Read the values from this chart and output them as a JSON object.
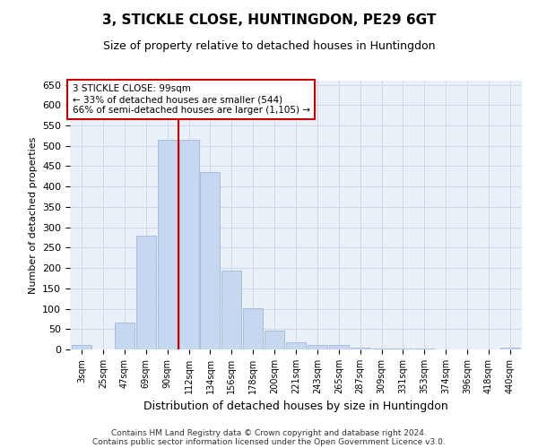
{
  "title": "3, STICKLE CLOSE, HUNTINGDON, PE29 6GT",
  "subtitle": "Size of property relative to detached houses in Huntingdon",
  "xlabel": "Distribution of detached houses by size in Huntingdon",
  "ylabel": "Number of detached properties",
  "footer1": "Contains HM Land Registry data © Crown copyright and database right 2024.",
  "footer2": "Contains public sector information licensed under the Open Government Licence v3.0.",
  "categories": [
    "3sqm",
    "25sqm",
    "47sqm",
    "69sqm",
    "90sqm",
    "112sqm",
    "134sqm",
    "156sqm",
    "178sqm",
    "200sqm",
    "221sqm",
    "243sqm",
    "265sqm",
    "287sqm",
    "309sqm",
    "331sqm",
    "353sqm",
    "374sqm",
    "396sqm",
    "418sqm",
    "440sqm"
  ],
  "values": [
    10,
    0,
    65,
    280,
    515,
    515,
    435,
    193,
    102,
    46,
    18,
    12,
    10,
    5,
    3,
    2,
    2,
    0,
    0,
    0,
    5
  ],
  "bar_color": "#c5d8f0",
  "bar_edge_color": "#a0b8d8",
  "grid_color": "#d0d8e8",
  "background_color": "#eaf0f8",
  "vline_color": "#cc0000",
  "annotation_line1": "3 STICKLE CLOSE: 99sqm",
  "annotation_line2": "← 33% of detached houses are smaller (544)",
  "annotation_line3": "66% of semi-detached houses are larger (1,105) →",
  "annotation_box_color": "#ffffff",
  "annotation_box_edge": "#cc0000",
  "ylim": [
    0,
    660
  ],
  "yticks": [
    0,
    50,
    100,
    150,
    200,
    250,
    300,
    350,
    400,
    450,
    500,
    550,
    600,
    650
  ],
  "title_fontsize": 11,
  "subtitle_fontsize": 9,
  "ylabel_fontsize": 8,
  "xlabel_fontsize": 9,
  "tick_fontsize": 8,
  "xtick_fontsize": 7
}
